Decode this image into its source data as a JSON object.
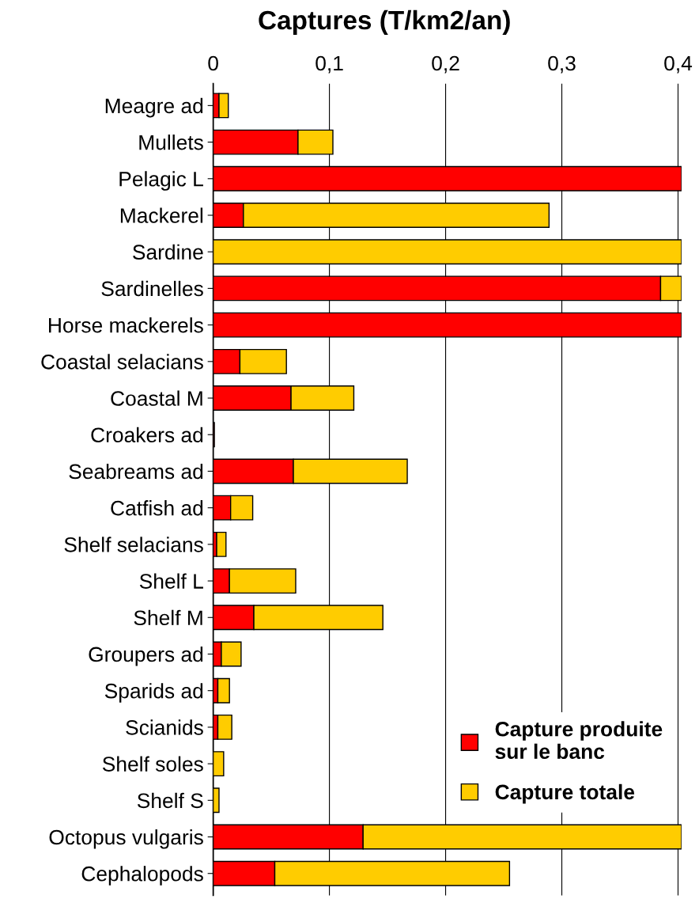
{
  "chart_data": {
    "type": "bar",
    "orientation": "horizontal",
    "stacked": true,
    "title": "Captures (T/km2/an)",
    "categories": [
      "Meagre ad",
      "Mullets",
      "Pelagic L",
      "Mackerel",
      "Sardine",
      "Sardinelles",
      "Horse mackerels",
      "Coastal selacians",
      "Coastal M",
      "Croakers ad",
      "Seabreams ad",
      "Catfish ad",
      "Shelf selacians",
      "Shelf L",
      "Shelf M",
      "Groupers ad",
      "Sparids ad",
      "Scianids",
      "Shelf soles",
      "Shelf S",
      "Octopus vulgaris",
      "Cephalopods"
    ],
    "series": [
      {
        "name": "Capture produite\nsur le banc",
        "color": "#ff0000",
        "values": [
          0.005,
          0.073,
          0.403,
          0.026,
          null,
          0.385,
          0.403,
          0.023,
          0.067,
          0.001,
          0.069,
          0.015,
          0.003,
          0.014,
          0.035,
          0.007,
          0.004,
          0.004,
          null,
          null,
          0.129,
          0.053
        ]
      },
      {
        "name": "Capture totale",
        "color": "#ffcc00",
        "values": [
          0.008,
          0.03,
          null,
          0.263,
          0.403,
          0.018,
          null,
          0.04,
          0.054,
          null,
          0.098,
          0.019,
          0.008,
          0.057,
          0.111,
          0.017,
          0.01,
          0.012,
          0.009,
          0.005,
          0.274,
          0.202
        ]
      }
    ],
    "xlim": [
      0,
      0.403
    ],
    "xticks": [
      {
        "value": 0,
        "label": "0"
      },
      {
        "value": 0.1,
        "label": "0,1"
      },
      {
        "value": 0.2,
        "label": "0,2"
      },
      {
        "value": 0.3,
        "label": "0,3"
      },
      {
        "value": 0.4,
        "label": "0,4"
      }
    ],
    "grid": "x",
    "legend": "bottom right"
  }
}
